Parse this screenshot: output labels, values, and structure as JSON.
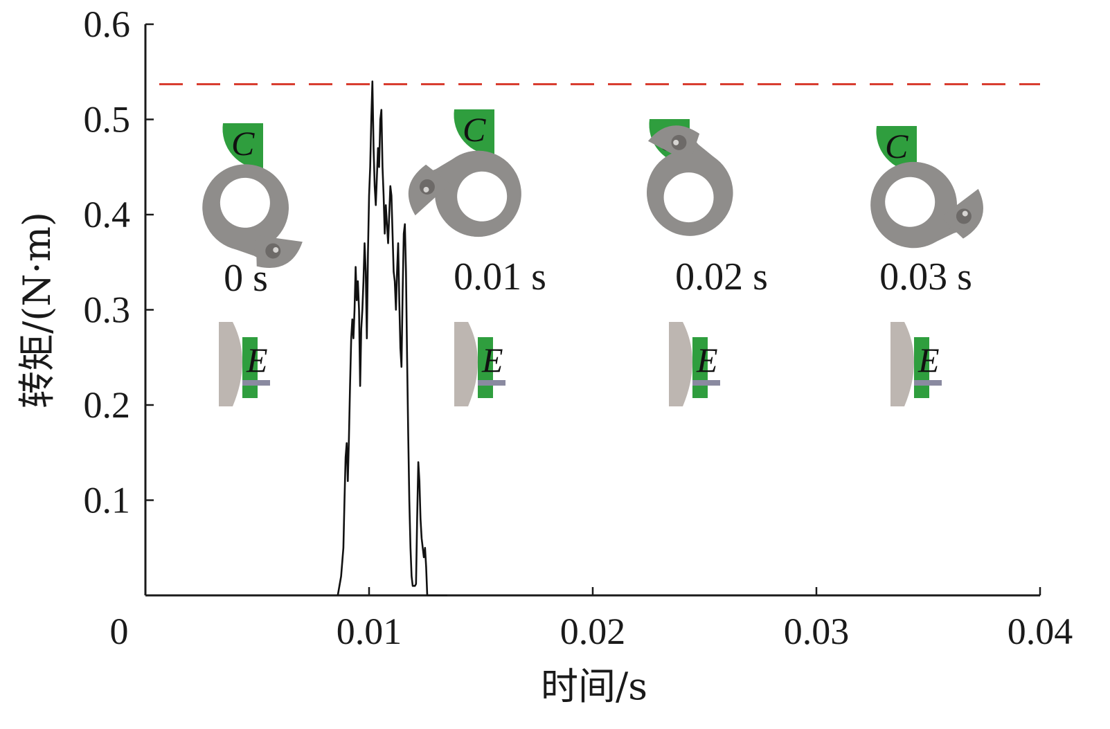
{
  "chart_data": {
    "type": "line",
    "xlabel": "时间/s",
    "ylabel": "转矩/(N·m)",
    "xlim": [
      0,
      0.04
    ],
    "ylim": [
      0,
      0.6
    ],
    "x_ticks": [
      0,
      0.01,
      0.02,
      0.03,
      0.04
    ],
    "x_tick_labels": [
      "0",
      "0.01",
      "0.02",
      "0.03",
      "0.04"
    ],
    "y_ticks": [
      0.1,
      0.2,
      0.3,
      0.4,
      0.5,
      0.6
    ],
    "y_tick_labels": [
      "0.1",
      "0.2",
      "0.3",
      "0.4",
      "0.5",
      "0.6"
    ],
    "grid": false,
    "series": [
      {
        "color": "#111111",
        "x": [
          0.0086,
          0.00875,
          0.00885,
          0.0089,
          0.00895,
          0.009,
          0.00905,
          0.0091,
          0.00915,
          0.0092,
          0.00925,
          0.0093,
          0.00935,
          0.0094,
          0.00945,
          0.0095,
          0.00955,
          0.0096,
          0.00965,
          0.0097,
          0.00975,
          0.0098,
          0.00985,
          0.0099,
          0.00995,
          0.01,
          0.01005,
          0.0101,
          0.01015,
          0.0102,
          0.01025,
          0.0103,
          0.01035,
          0.0104,
          0.01045,
          0.0105,
          0.01055,
          0.0106,
          0.01065,
          0.0107,
          0.01075,
          0.0108,
          0.01085,
          0.0109,
          0.01095,
          0.011,
          0.01105,
          0.0111,
          0.01115,
          0.0112,
          0.01125,
          0.0113,
          0.01135,
          0.0114,
          0.01145,
          0.0115,
          0.01155,
          0.0116,
          0.01165,
          0.0117,
          0.01175,
          0.0118,
          0.01185,
          0.0119,
          0.01195,
          0.012,
          0.01205,
          0.0121,
          0.01215,
          0.0122,
          0.01225,
          0.0123,
          0.01235,
          0.0124,
          0.01245,
          0.0125,
          0.01255,
          0.0126,
          0.01265,
          0.0127,
          0.01275,
          0.0128,
          0.01285,
          0.0129,
          0.01295,
          0.013,
          0.01305,
          0.0131,
          0.01315,
          0.0132,
          0.01325,
          0.0133,
          0.01335,
          0.0134,
          0.01345,
          0.0135
        ],
        "y": [
          0.0,
          0.02,
          0.05,
          0.1,
          0.145,
          0.16,
          0.12,
          0.165,
          0.22,
          0.27,
          0.29,
          0.27,
          0.3,
          0.345,
          0.31,
          0.33,
          0.3,
          0.22,
          0.28,
          0.3,
          0.33,
          0.37,
          0.34,
          0.27,
          0.36,
          0.42,
          0.45,
          0.5,
          0.54,
          0.47,
          0.43,
          0.41,
          0.44,
          0.47,
          0.45,
          0.5,
          0.51,
          0.45,
          0.42,
          0.38,
          0.41,
          0.39,
          0.37,
          0.4,
          0.43,
          0.42,
          0.38,
          0.34,
          0.33,
          0.3,
          0.34,
          0.37,
          0.31,
          0.26,
          0.24,
          0.32,
          0.38,
          0.39,
          0.34,
          0.25,
          0.17,
          0.1,
          0.05,
          0.02,
          0.01,
          0.01,
          0.01,
          0.012,
          0.08,
          0.14,
          0.12,
          0.08,
          0.06,
          0.05,
          0.04,
          0.05,
          0.03,
          0.0,
          0.0,
          0.0,
          0.0,
          0.0,
          0.0,
          0.0,
          0.0,
          0.0,
          0.0,
          0.0,
          0.0,
          0.0,
          0.0,
          0.0,
          0.0,
          0.0,
          0.0,
          0.0
        ]
      }
    ],
    "reference_line": {
      "y": 0.537,
      "style": "dashed",
      "color": "#d8392b"
    },
    "annotations": [
      {
        "time_label": "0 s",
        "cam_rotation_deg": 25,
        "lever_letter": "C",
        "stop_letter": "E"
      },
      {
        "time_label": "0.01 s",
        "cam_rotation_deg": 155,
        "lever_letter": "C",
        "stop_letter": "E"
      },
      {
        "time_label": "0.02 s",
        "cam_rotation_deg": 225,
        "lever_letter": "C",
        "stop_letter": "E"
      },
      {
        "time_label": "0.03 s",
        "cam_rotation_deg": 340,
        "lever_letter": "C",
        "stop_letter": "E"
      }
    ]
  },
  "colors": {
    "axis": "#1a1a1a",
    "curve": "#111111",
    "reference": "#d8392b",
    "lever_green": "#2f9e3e",
    "cam_gray": "#8f8d8b",
    "cam_dark": "#6d6a68",
    "stop_gray": "#bdb6b1",
    "stop_plate": "#8a8aa0"
  }
}
